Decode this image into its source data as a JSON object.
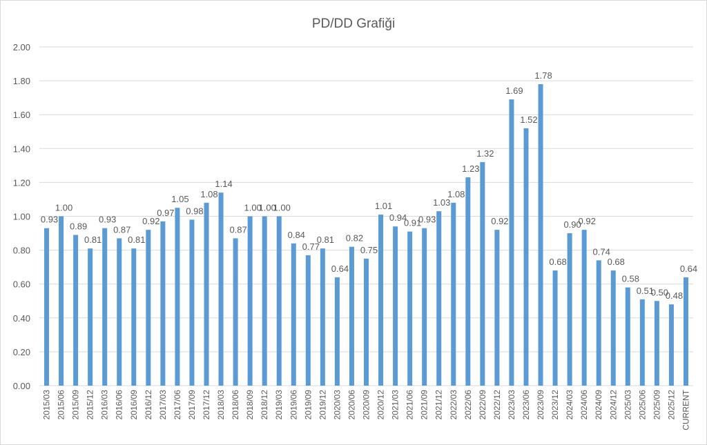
{
  "chart_data": {
    "type": "bar",
    "title": "PD/DD Grafiği",
    "xlabel": "",
    "ylabel": "",
    "ylim": [
      0,
      2
    ],
    "yticks": [
      "0.00",
      "0.20",
      "0.40",
      "0.60",
      "0.80",
      "1.00",
      "1.20",
      "1.40",
      "1.60",
      "1.80",
      "2.00"
    ],
    "grid": true,
    "legend": "none",
    "bar_color": "#5b9bd5",
    "categories": [
      "2015/03",
      "2015/06",
      "2015/09",
      "2015/12",
      "2016/03",
      "2016/06",
      "2016/09",
      "2016/12",
      "2017/03",
      "2017/06",
      "2017/09",
      "2017/12",
      "2018/03",
      "2018/06",
      "2018/09",
      "2018/12",
      "2019/03",
      "2019/06",
      "2019/09",
      "2019/12",
      "2020/03",
      "2020/06",
      "2020/09",
      "2020/12",
      "2021/03",
      "2021/06",
      "2021/09",
      "2021/12",
      "2022/03",
      "2022/06",
      "2022/09",
      "2022/12",
      "2023/03",
      "2023/06",
      "2023/09",
      "2023/12",
      "2024/03",
      "2024/06",
      "2024/09",
      "2024/12",
      "2025/03",
      "2025/06",
      "2025/09",
      "2025/12",
      "CURRENT"
    ],
    "values": [
      0.93,
      1.0,
      0.89,
      0.81,
      0.93,
      0.87,
      0.81,
      0.92,
      0.97,
      1.05,
      0.98,
      1.08,
      1.14,
      0.87,
      1.0,
      1.0,
      1.0,
      0.84,
      0.77,
      0.81,
      0.64,
      0.82,
      0.75,
      1.01,
      0.94,
      0.91,
      0.93,
      1.03,
      1.08,
      1.23,
      1.32,
      0.92,
      1.69,
      1.52,
      1.78,
      0.68,
      0.9,
      0.92,
      0.74,
      0.68,
      0.58,
      0.51,
      0.5,
      0.48,
      0.64
    ]
  }
}
